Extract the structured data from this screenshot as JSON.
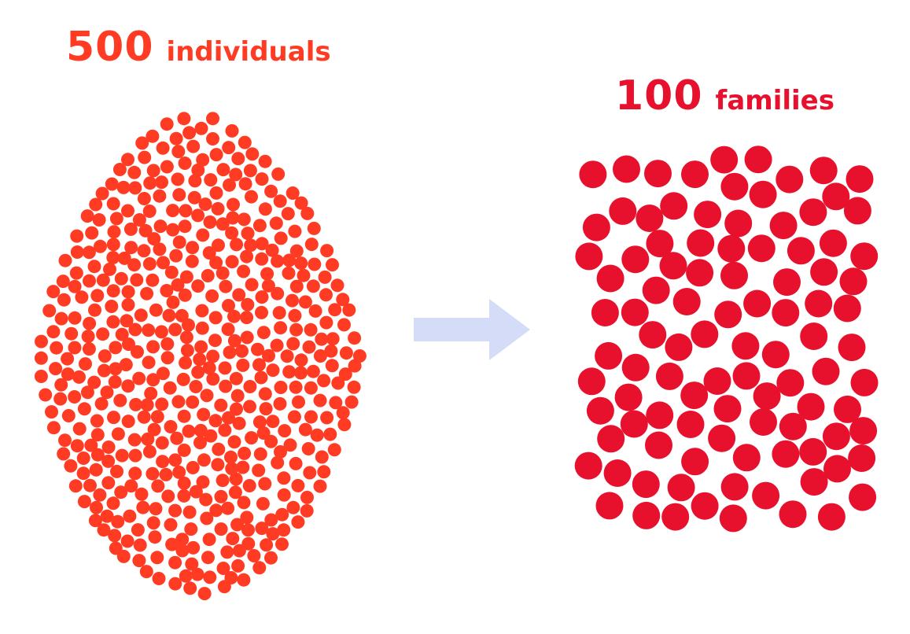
{
  "left_group": {
    "count": "500",
    "word": "individuals",
    "count_value": 500,
    "color": "#ff3b24"
  },
  "right_group": {
    "count": "100",
    "word": "families",
    "count_value": 100,
    "color": "#e8112d"
  },
  "arrow": {
    "color": "#d5dcf7",
    "icon": "right-arrow-icon"
  }
}
